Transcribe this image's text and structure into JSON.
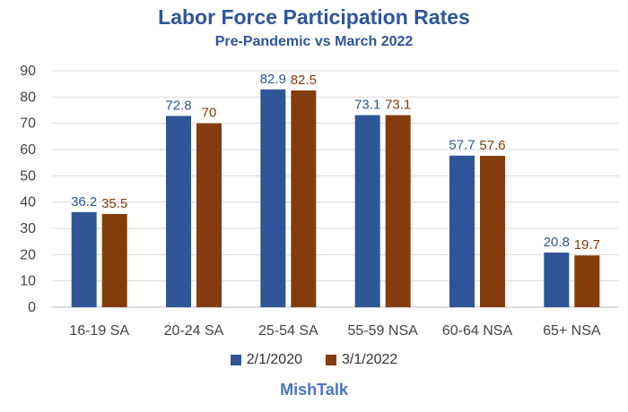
{
  "chart_data": {
    "type": "bar",
    "title": "Labor Force Participation Rates",
    "subtitle": "Pre-Pandemic vs March 2022",
    "categories": [
      "16-19 SA",
      "20-24 SA",
      "25-54 SA",
      "55-59 NSA",
      "60-64 NSA",
      "65+ NSA"
    ],
    "series": [
      {
        "name": "2/1/2020",
        "color": "#2f5597",
        "label_color": "#2f5597",
        "values": [
          36.2,
          72.8,
          82.9,
          73.1,
          57.7,
          20.8
        ]
      },
      {
        "name": "3/1/2022",
        "color": "#843c0c",
        "label_color": "#843c0c",
        "values": [
          35.5,
          70,
          82.5,
          73.1,
          57.6,
          19.7
        ]
      }
    ],
    "ylim": [
      0,
      90
    ],
    "yticks": [
      0,
      10,
      20,
      30,
      40,
      50,
      60,
      70,
      80,
      90
    ],
    "grid": true,
    "legend": "bottom",
    "xlabel": "",
    "ylabel": ""
  },
  "footer": "MishTalk"
}
